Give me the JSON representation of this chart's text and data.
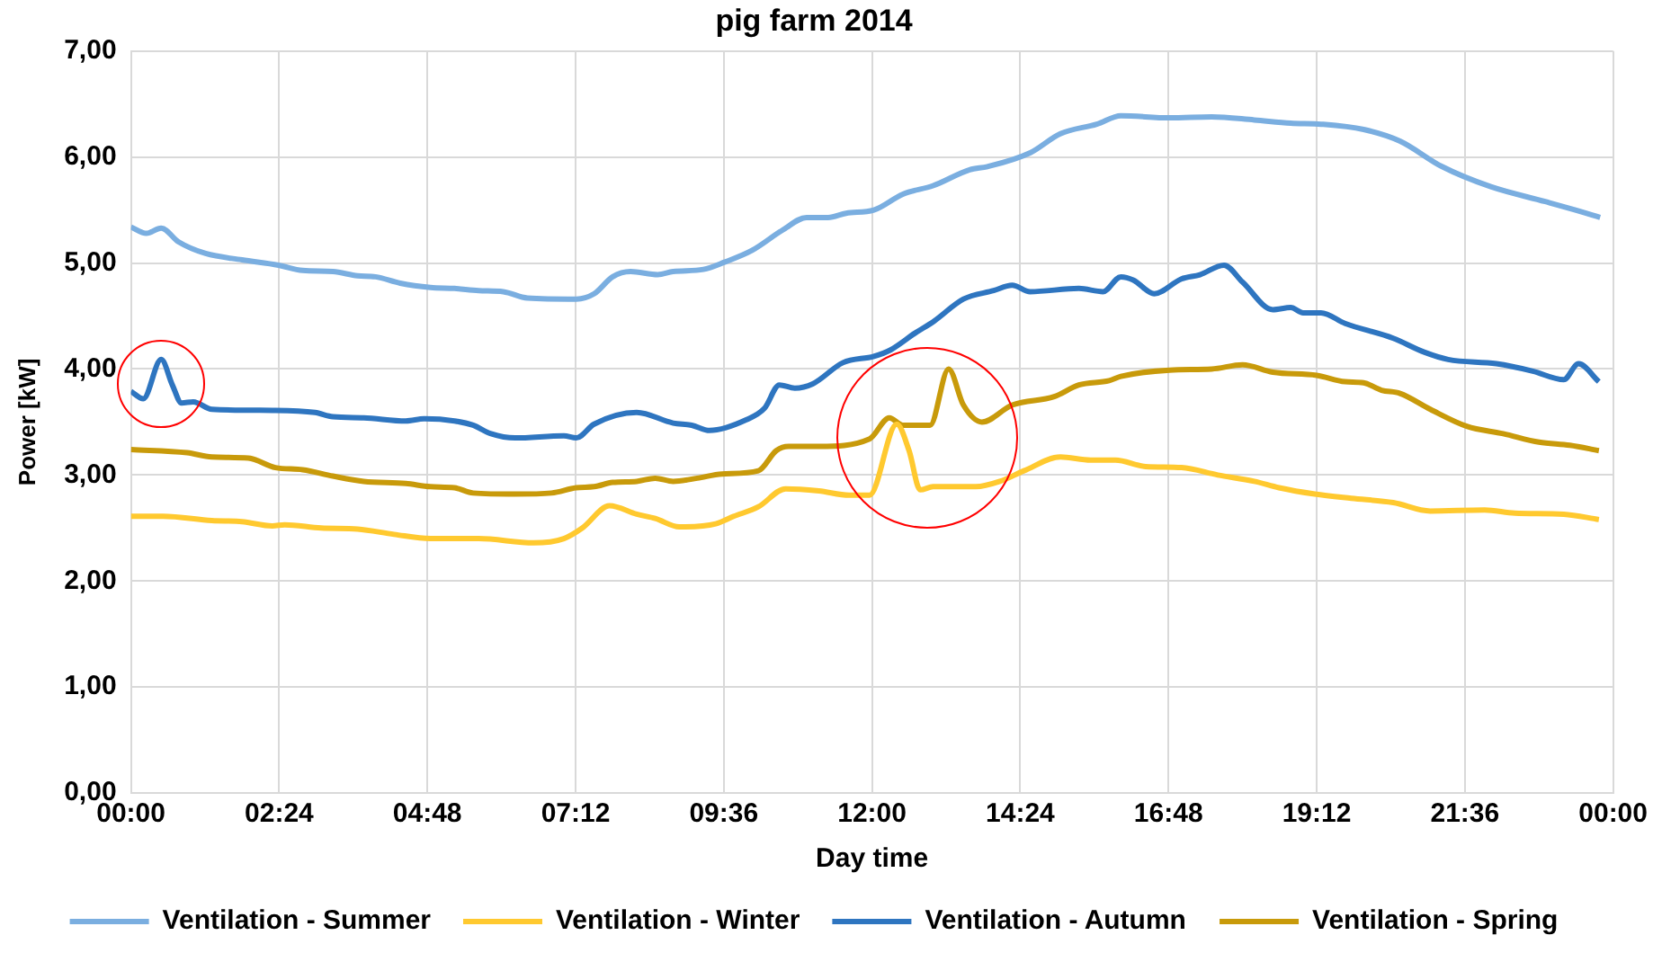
{
  "chart_data": {
    "type": "line",
    "title": "pig farm 2014",
    "xlabel": "Day time",
    "ylabel": "Power [kW]",
    "xlim": [
      0,
      24
    ],
    "xticks": [
      {
        "value": 0,
        "label": "00:00"
      },
      {
        "value": 2.4,
        "label": "02:24"
      },
      {
        "value": 4.8,
        "label": "04:48"
      },
      {
        "value": 7.2,
        "label": "07:12"
      },
      {
        "value": 9.6,
        "label": "09:36"
      },
      {
        "value": 12,
        "label": "12:00"
      },
      {
        "value": 14.4,
        "label": "14:24"
      },
      {
        "value": 16.8,
        "label": "16:48"
      },
      {
        "value": 19.2,
        "label": "19:12"
      },
      {
        "value": 21.6,
        "label": "21:36"
      },
      {
        "value": 24,
        "label": "00:00"
      }
    ],
    "ylim": [
      0,
      7
    ],
    "yticks": [
      {
        "value": 0,
        "label": "0,00"
      },
      {
        "value": 1,
        "label": "1,00"
      },
      {
        "value": 2,
        "label": "2,00"
      },
      {
        "value": 3,
        "label": "3,00"
      },
      {
        "value": 4,
        "label": "4,00"
      },
      {
        "value": 5,
        "label": "5,00"
      },
      {
        "value": 6,
        "label": "6,00"
      },
      {
        "value": 7,
        "label": "7,00"
      }
    ],
    "grid": true,
    "legend": "bottom",
    "marker": "none",
    "line_style": "solid",
    "series": [
      {
        "name": "Ventilation - Summer",
        "color": "#7aaee0",
        "x": [
          0,
          0.25,
          0.49,
          0.77,
          1.21,
          1.8,
          2.39,
          2.78,
          3.27,
          3.67,
          3.96,
          4.36,
          4.85,
          5.24,
          5.63,
          6.03,
          6.42,
          7.21,
          7.5,
          7.8,
          8.09,
          8.53,
          8.78,
          9.27,
          9.62,
          10.06,
          10.55,
          10.94,
          11.29,
          11.58,
          12.03,
          12.5,
          12.99,
          13.58,
          13.87,
          14.56,
          15.05,
          15.64,
          16.03,
          16.82,
          17.5,
          18.19,
          18.78,
          19.27,
          19.96,
          20.55,
          21.23,
          22.02,
          22.9,
          23.39,
          23.79
        ],
        "values": [
          5.34,
          5.28,
          5.33,
          5.2,
          5.09,
          5.03,
          4.98,
          4.93,
          4.92,
          4.88,
          4.87,
          4.81,
          4.77,
          4.76,
          4.74,
          4.73,
          4.67,
          4.66,
          4.71,
          4.87,
          4.92,
          4.89,
          4.92,
          4.94,
          5.01,
          5.12,
          5.31,
          5.43,
          5.43,
          5.47,
          5.5,
          5.65,
          5.73,
          5.88,
          5.91,
          6.04,
          6.22,
          6.31,
          6.39,
          6.37,
          6.38,
          6.35,
          6.32,
          6.31,
          6.26,
          6.15,
          5.91,
          5.72,
          5.58,
          5.5,
          5.43
        ]
      },
      {
        "name": "Ventilation - Winter",
        "color": "#ffc92f",
        "x": [
          0,
          0.52,
          1.31,
          1.8,
          2.29,
          2.49,
          3.08,
          3.67,
          4.26,
          4.85,
          5.63,
          6.52,
          7.01,
          7.31,
          7.75,
          8.19,
          8.49,
          8.88,
          9.47,
          9.76,
          10.16,
          10.6,
          11.14,
          11.63,
          11.96,
          12.4,
          12.6,
          12.78,
          12.99,
          13.68,
          14.07,
          14.46,
          15.05,
          15.54,
          15.94,
          16.43,
          17.01,
          17.6,
          18.19,
          18.59,
          19.17,
          19.76,
          20.44,
          21.04,
          21.92,
          22.41,
          23.2,
          23.77
        ],
        "values": [
          2.61,
          2.61,
          2.57,
          2.56,
          2.52,
          2.53,
          2.5,
          2.49,
          2.44,
          2.4,
          2.4,
          2.36,
          2.4,
          2.5,
          2.71,
          2.63,
          2.59,
          2.51,
          2.54,
          2.61,
          2.7,
          2.87,
          2.85,
          2.81,
          2.81,
          3.48,
          3.23,
          2.86,
          2.89,
          2.89,
          2.94,
          3.04,
          3.17,
          3.14,
          3.14,
          3.08,
          3.07,
          3,
          2.94,
          2.88,
          2.82,
          2.78,
          2.74,
          2.66,
          2.67,
          2.64,
          2.63,
          2.58
        ]
      },
      {
        "name": "Ventilation - Autumn",
        "color": "#2e75c0",
        "x": [
          0,
          0.2,
          0.49,
          0.67,
          0.82,
          1.01,
          1.31,
          2.29,
          2.98,
          3.27,
          3.77,
          4.45,
          4.75,
          5.24,
          5.54,
          5.83,
          6.22,
          7.01,
          7.21,
          7.5,
          8.19,
          8.78,
          9.08,
          9.37,
          9.96,
          10.26,
          10.5,
          10.75,
          11.04,
          11.53,
          12.03,
          12.3,
          12.7,
          13,
          13.48,
          13.97,
          14.27,
          14.56,
          15.35,
          15.74,
          16.03,
          16.23,
          16.57,
          17.01,
          17.31,
          17.7,
          18,
          18.49,
          18.78,
          18.98,
          19.27,
          19.66,
          20.44,
          20.94,
          21.33,
          22.11,
          22.7,
          23.2,
          23.44,
          23.77
        ],
        "values": [
          3.79,
          3.72,
          4.09,
          3.85,
          3.68,
          3.69,
          3.62,
          3.61,
          3.59,
          3.55,
          3.54,
          3.51,
          3.53,
          3.51,
          3.47,
          3.39,
          3.35,
          3.37,
          3.35,
          3.48,
          3.59,
          3.49,
          3.47,
          3.42,
          3.52,
          3.63,
          3.85,
          3.82,
          3.86,
          4.06,
          4.12,
          4.18,
          4.34,
          4.45,
          4.66,
          4.74,
          4.79,
          4.73,
          4.76,
          4.73,
          4.87,
          4.84,
          4.71,
          4.85,
          4.89,
          4.98,
          4.82,
          4.56,
          4.58,
          4.53,
          4.53,
          4.43,
          4.29,
          4.16,
          4.09,
          4.05,
          3.98,
          3.9,
          4.05,
          3.88
        ]
      },
      {
        "name": "Ventilation - Spring",
        "color": "#c89a0a",
        "x": [
          0,
          0.91,
          1.31,
          1.9,
          2.34,
          2.78,
          3.27,
          3.77,
          4.45,
          4.85,
          5.24,
          5.54,
          6.22,
          6.81,
          7.21,
          7.5,
          7.8,
          8.19,
          8.49,
          8.78,
          9.17,
          9.57,
          10.16,
          10.45,
          10.65,
          11.14,
          11.96,
          12.28,
          12.5,
          12.94,
          13.24,
          13.48,
          13.78,
          14.27,
          14.95,
          15.35,
          15.84,
          16.03,
          16.82,
          17.5,
          18,
          18.49,
          19.2,
          19.66,
          19.96,
          20.25,
          20.55,
          21.04,
          21.63,
          22.22,
          22.8,
          23.3,
          23.77
        ],
        "values": [
          3.24,
          3.21,
          3.17,
          3.16,
          3.07,
          3.05,
          2.99,
          2.94,
          2.92,
          2.89,
          2.88,
          2.83,
          2.82,
          2.83,
          2.88,
          2.89,
          2.93,
          2.94,
          2.97,
          2.94,
          2.97,
          3.01,
          3.04,
          3.23,
          3.27,
          3.27,
          3.34,
          3.54,
          3.47,
          3.47,
          4,
          3.66,
          3.5,
          3.66,
          3.74,
          3.85,
          3.89,
          3.93,
          3.99,
          4,
          4.04,
          3.97,
          3.94,
          3.88,
          3.87,
          3.8,
          3.77,
          3.62,
          3.46,
          3.39,
          3.31,
          3.28,
          3.23
        ]
      }
    ]
  }
}
